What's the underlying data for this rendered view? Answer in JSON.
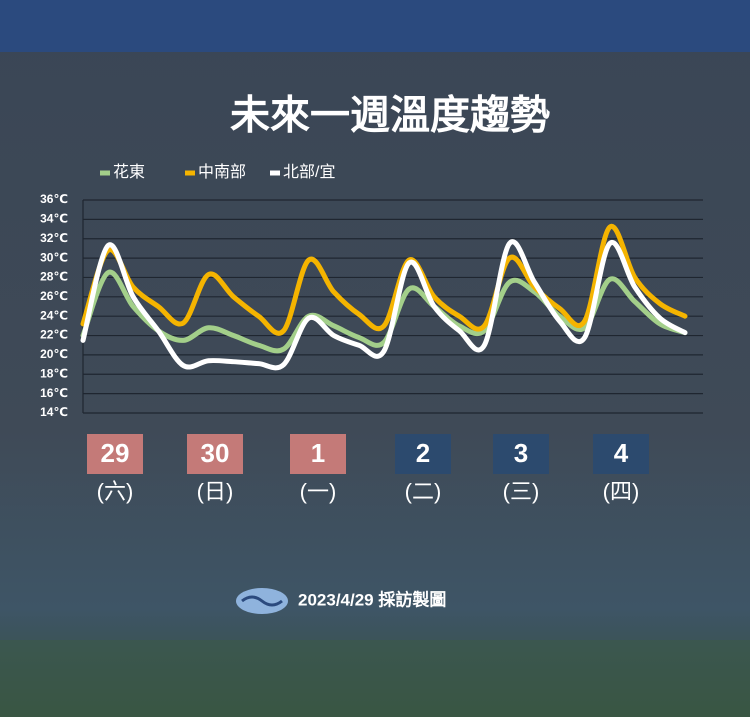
{
  "chart_data": {
    "type": "line",
    "title": "未來一週溫度趨勢",
    "categories": [
      null,
      null,
      null,
      null,
      null,
      null,
      null,
      null,
      null,
      null,
      null,
      null,
      null,
      null,
      null,
      null,
      null,
      null,
      null,
      null,
      null,
      null,
      null,
      null,
      null
    ],
    "series": [
      {
        "name": "花東",
        "color": "#a3cf8a",
        "values": [
          22,
          28.5,
          25,
          22.5,
          21.5,
          22.8,
          22,
          21,
          20.6,
          24,
          23,
          21.8,
          21.3,
          26.8,
          25,
          23,
          22.5,
          27.5,
          26.5,
          24,
          22.8,
          27.8,
          25.5,
          23.2,
          22.3
        ]
      },
      {
        "name": "中南部",
        "color": "#f5b400",
        "values": [
          23.2,
          30.8,
          27,
          25,
          23.3,
          28.3,
          26,
          24,
          22.5,
          29.8,
          26.5,
          24.2,
          23,
          29.8,
          26,
          24,
          23,
          30,
          27,
          24.8,
          23.5,
          33.2,
          28,
          25.3,
          24
        ]
      },
      {
        "name": "北部/宜",
        "color": "#ffffff",
        "values": [
          21.5,
          31.3,
          26,
          22.5,
          18.9,
          19.4,
          19.3,
          19.1,
          19,
          23.8,
          22,
          21,
          20.4,
          29.5,
          25,
          22.5,
          21,
          31.5,
          27.5,
          23.5,
          21.8,
          31.5,
          27,
          23.8,
          22.3
        ]
      }
    ],
    "ylim": [
      14,
      36
    ],
    "yticks": [
      {
        "value": 14,
        "label": "14℃"
      },
      {
        "value": 16,
        "label": "16℃"
      },
      {
        "value": 18,
        "label": "18℃"
      },
      {
        "value": 20,
        "label": "20℃"
      },
      {
        "value": 22,
        "label": "22℃"
      },
      {
        "value": 24,
        "label": "24℃"
      },
      {
        "value": 26,
        "label": "26℃"
      },
      {
        "value": 28,
        "label": "28℃"
      },
      {
        "value": 30,
        "label": "30℃"
      },
      {
        "value": 32,
        "label": "32℃"
      },
      {
        "value": 34,
        "label": "34℃"
      },
      {
        "value": 36,
        "label": "36℃"
      }
    ],
    "grid": true,
    "days": [
      {
        "date": "29",
        "weekday": "(六)",
        "color": "#c47a78"
      },
      {
        "date": "30",
        "weekday": "(日)",
        "color": "#c47a78"
      },
      {
        "date": "1",
        "weekday": "(一)",
        "color": "#c47a78"
      },
      {
        "date": "2",
        "weekday": "(二)",
        "color": "#2c4a6e"
      },
      {
        "date": "3",
        "weekday": "(三)",
        "color": "#2c4a6e"
      },
      {
        "date": "4",
        "weekday": "(四)",
        "color": "#2c4a6e"
      }
    ],
    "footer": "2023/4/29 採訪製圖"
  }
}
